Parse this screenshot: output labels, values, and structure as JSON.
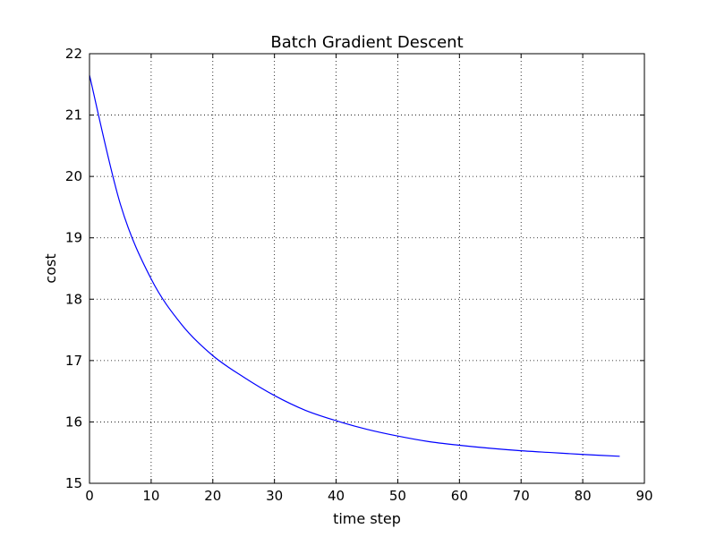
{
  "chart_data": {
    "type": "line",
    "title": "Batch Gradient Descent",
    "xlabel": "time step",
    "ylabel": "cost",
    "xlim": [
      0,
      90
    ],
    "ylim": [
      15,
      22
    ],
    "x_ticks": [
      0,
      10,
      20,
      30,
      40,
      50,
      60,
      70,
      80,
      90
    ],
    "y_ticks": [
      15,
      16,
      17,
      18,
      19,
      20,
      21,
      22
    ],
    "grid": true,
    "series": [
      {
        "color": "#0000ff",
        "x": [
          0,
          5,
          10,
          15,
          20,
          25,
          30,
          35,
          40,
          45,
          50,
          55,
          60,
          65,
          70,
          75,
          80,
          86
        ],
        "y": [
          21.65,
          19.55,
          18.33,
          17.58,
          17.08,
          16.73,
          16.43,
          16.19,
          16.02,
          15.88,
          15.77,
          15.68,
          15.62,
          15.57,
          15.53,
          15.5,
          15.47,
          15.44
        ]
      }
    ]
  }
}
